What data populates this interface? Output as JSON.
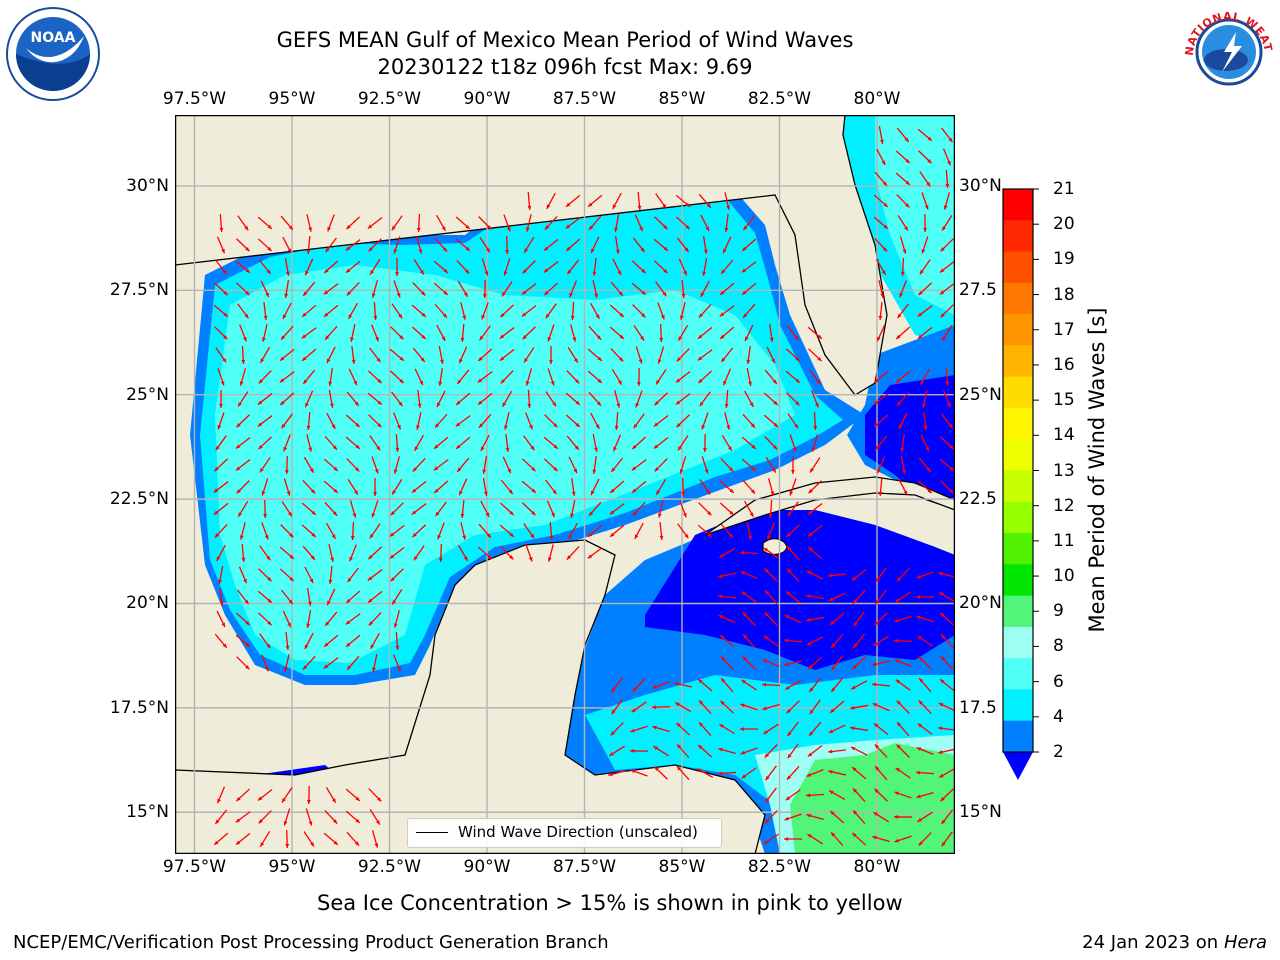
{
  "header": {
    "title_line1": "GEFS MEAN Gulf of Mexico Mean Period of Wind Waves",
    "title_line2": "20230122 t18z 096h fcst   Max: 9.69"
  },
  "logos": {
    "noaa_text": "NOAA",
    "nws_ring_text": "NATIONAL WEATHER SERVICE"
  },
  "map": {
    "lon_ticks": [
      "97.5°W",
      "95°W",
      "92.5°W",
      "90°W",
      "87.5°W",
      "85°W",
      "82.5°W",
      "80°W"
    ],
    "lon_values": [
      -97.5,
      -95,
      -92.5,
      -90,
      -87.5,
      -85,
      -82.5,
      -80
    ],
    "lat_ticks_left": [
      "30°N",
      "27.5°N",
      "25°N",
      "22.5°N",
      "20°N",
      "17.5°N",
      "15°N"
    ],
    "lat_ticks_right": [
      "30°N",
      "27.5",
      "25°N",
      "22.5",
      "20°N",
      "17.5",
      "15°N"
    ],
    "lat_values": [
      30,
      27.5,
      25,
      22.5,
      20,
      17.5,
      15
    ],
    "lon_range": [
      -98,
      -78
    ],
    "lat_range": [
      14,
      31.7
    ],
    "legend_label": "Wind Wave Direction (unscaled)",
    "colors": {
      "land": "#efedda",
      "arrow": "#ff0000",
      "grid": "#b4b4b4"
    }
  },
  "colorbar": {
    "title": "Mean Period of Wind Waves [s]",
    "labels": [
      "21",
      "20",
      "19",
      "18",
      "17",
      "16",
      "15",
      "14",
      "13",
      "12",
      "11",
      "10",
      "9",
      "8",
      "6",
      "4",
      "2"
    ],
    "colors": [
      "#ff0000",
      "#ff2800",
      "#ff5000",
      "#ff7800",
      "#ff9600",
      "#ffb400",
      "#ffdc00",
      "#fff500",
      "#f0ff00",
      "#c8ff00",
      "#96ff00",
      "#50f000",
      "#00e600",
      "#50f57a",
      "#a0fff5",
      "#50fff5",
      "#00f0ff",
      "#0080ff"
    ],
    "extend_color": "#0000ff"
  },
  "notes": {
    "sea_ice": "Sea Ice Concentration > 15% is shown in pink to yellow"
  },
  "footer": {
    "left": "NCEP/EMC/Verification Post Processing Product Generation Branch",
    "right_date": "24 Jan 2023 on ",
    "right_machine": "Hera"
  }
}
